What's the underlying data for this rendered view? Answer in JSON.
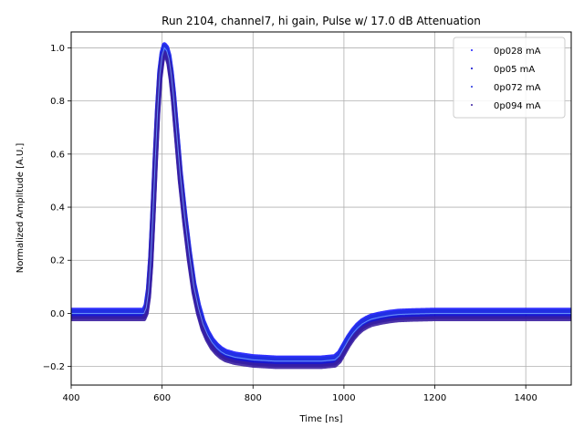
{
  "chart_data": {
    "type": "scatter",
    "title": "Run 2104, channel7, hi gain, Pulse w/ 17.0 dB Attenuation",
    "xlabel": "Time [ns]",
    "ylabel": "Normalized Amplitude [A.U.]",
    "xlim": [
      400,
      1500
    ],
    "ylim": [
      -0.27,
      1.06
    ],
    "xticks": [
      400,
      600,
      800,
      1000,
      1200,
      1400
    ],
    "yticks": [
      -0.2,
      0.0,
      0.2,
      0.4,
      0.6,
      0.8,
      1.0
    ],
    "grid": true,
    "legend_position": "top-right",
    "series": [
      {
        "name": "0p028 mA",
        "color": "#1a1aff"
      },
      {
        "name": "0p05 mA",
        "color": "#0000cc"
      },
      {
        "name": "0p072 mA",
        "color": "#2030e0"
      },
      {
        "name": "0p094 mA",
        "color": "#3a1fa0"
      }
    ],
    "waveform": {
      "x": [
        400,
        560,
        565,
        570,
        575,
        580,
        585,
        590,
        595,
        600,
        605,
        610,
        615,
        620,
        625,
        630,
        635,
        640,
        650,
        660,
        670,
        680,
        690,
        700,
        710,
        720,
        730,
        740,
        750,
        760,
        780,
        800,
        850,
        900,
        950,
        980,
        990,
        1000,
        1010,
        1020,
        1030,
        1040,
        1050,
        1060,
        1080,
        1100,
        1120,
        1150,
        1200,
        1300,
        1400,
        1500
      ],
      "y": [
        0.0,
        0.0,
        0.02,
        0.08,
        0.2,
        0.38,
        0.58,
        0.76,
        0.9,
        0.97,
        1.0,
        0.99,
        0.96,
        0.9,
        0.82,
        0.72,
        0.62,
        0.52,
        0.36,
        0.22,
        0.1,
        0.02,
        -0.04,
        -0.08,
        -0.11,
        -0.13,
        -0.145,
        -0.155,
        -0.16,
        -0.165,
        -0.17,
        -0.175,
        -0.18,
        -0.18,
        -0.18,
        -0.175,
        -0.16,
        -0.13,
        -0.1,
        -0.075,
        -0.055,
        -0.04,
        -0.03,
        -0.022,
        -0.014,
        -0.008,
        -0.004,
        -0.002,
        0.0,
        0.0,
        0.0,
        0.0
      ]
    }
  }
}
